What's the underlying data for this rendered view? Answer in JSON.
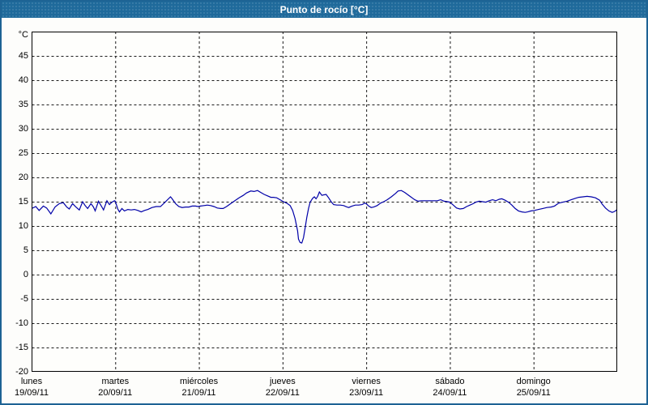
{
  "window": {
    "title": "Punto de rocío [°C]"
  },
  "colors": {
    "titlebar_bg": "#1f6a9b",
    "frame": "#1d6394",
    "background": "#fdfdfb",
    "plot_background": "#fefefc",
    "line": "#0000a8",
    "grid": "#1a1a1a",
    "text": "#000000"
  },
  "chart_data": {
    "type": "line",
    "title": "Punto de rocío [°C]",
    "ylabel": "°C",
    "xlabel": "",
    "ylim": [
      -20,
      50
    ],
    "ytick_step": 5,
    "ytick_labels": [
      "45",
      "40",
      "35",
      "30",
      "25",
      "20",
      "15",
      "10",
      "5",
      "0",
      "-5",
      "-10",
      "-15",
      "-20"
    ],
    "grid": "dashed",
    "legend_position": "none",
    "x_days": 7,
    "x_labels": [
      {
        "weekday": "lunes",
        "date": "19/09/11"
      },
      {
        "weekday": "martes",
        "date": "20/09/11"
      },
      {
        "weekday": "miércoles",
        "date": "21/09/11"
      },
      {
        "weekday": "jueves",
        "date": "22/09/11"
      },
      {
        "weekday": "viernes",
        "date": "23/09/11"
      },
      {
        "weekday": "sábado",
        "date": "24/09/11"
      },
      {
        "weekday": "domingo",
        "date": "25/09/11"
      }
    ],
    "series": [
      {
        "name": "Punto de rocío",
        "color": "#0000a8",
        "points": [
          [
            0.0,
            13.6
          ],
          [
            0.05,
            14.0
          ],
          [
            0.09,
            13.2
          ],
          [
            0.14,
            14.1
          ],
          [
            0.18,
            13.7
          ],
          [
            0.23,
            12.5
          ],
          [
            0.28,
            13.9
          ],
          [
            0.33,
            14.6
          ],
          [
            0.38,
            14.8
          ],
          [
            0.42,
            13.9
          ],
          [
            0.45,
            13.5
          ],
          [
            0.49,
            14.6
          ],
          [
            0.53,
            13.9
          ],
          [
            0.57,
            13.3
          ],
          [
            0.61,
            15.0
          ],
          [
            0.64,
            14.2
          ],
          [
            0.67,
            13.6
          ],
          [
            0.71,
            14.6
          ],
          [
            0.74,
            13.9
          ],
          [
            0.76,
            13.1
          ],
          [
            0.8,
            15.1
          ],
          [
            0.84,
            13.9
          ],
          [
            0.86,
            13.3
          ],
          [
            0.9,
            15.2
          ],
          [
            0.93,
            14.4
          ],
          [
            0.96,
            14.9
          ],
          [
            0.99,
            15.2
          ],
          [
            1.0,
            15.1
          ],
          [
            1.03,
            13.5
          ],
          [
            1.05,
            12.9
          ],
          [
            1.08,
            13.6
          ],
          [
            1.11,
            13.1
          ],
          [
            1.15,
            13.4
          ],
          [
            1.19,
            13.3
          ],
          [
            1.23,
            13.4
          ],
          [
            1.27,
            13.2
          ],
          [
            1.31,
            12.9
          ],
          [
            1.35,
            13.2
          ],
          [
            1.39,
            13.4
          ],
          [
            1.44,
            13.8
          ],
          [
            1.49,
            14.0
          ],
          [
            1.54,
            14.0
          ],
          [
            1.59,
            14.8
          ],
          [
            1.63,
            15.5
          ],
          [
            1.66,
            16.0
          ],
          [
            1.68,
            15.6
          ],
          [
            1.72,
            14.6
          ],
          [
            1.76,
            14.0
          ],
          [
            1.8,
            13.8
          ],
          [
            1.84,
            13.9
          ],
          [
            1.88,
            13.9
          ],
          [
            1.92,
            14.1
          ],
          [
            1.96,
            14.1
          ],
          [
            1.99,
            14.0
          ],
          [
            2.02,
            14.1
          ],
          [
            2.06,
            14.2
          ],
          [
            2.1,
            14.3
          ],
          [
            2.14,
            14.2
          ],
          [
            2.18,
            14.0
          ],
          [
            2.22,
            13.7
          ],
          [
            2.26,
            13.6
          ],
          [
            2.29,
            13.6
          ],
          [
            2.33,
            14.0
          ],
          [
            2.38,
            14.6
          ],
          [
            2.43,
            15.2
          ],
          [
            2.48,
            15.8
          ],
          [
            2.53,
            16.3
          ],
          [
            2.57,
            16.8
          ],
          [
            2.62,
            17.2
          ],
          [
            2.66,
            17.1
          ],
          [
            2.7,
            17.3
          ],
          [
            2.74,
            16.9
          ],
          [
            2.78,
            16.5
          ],
          [
            2.82,
            16.2
          ],
          [
            2.86,
            15.9
          ],
          [
            2.89,
            15.9
          ],
          [
            2.93,
            15.8
          ],
          [
            2.97,
            15.4
          ],
          [
            3.01,
            15.0
          ],
          [
            3.05,
            14.7
          ],
          [
            3.09,
            14.2
          ],
          [
            3.12,
            13.2
          ],
          [
            3.15,
            11.5
          ],
          [
            3.18,
            9.0
          ],
          [
            3.19,
            7.3
          ],
          [
            3.21,
            6.6
          ],
          [
            3.23,
            6.5
          ],
          [
            3.25,
            7.6
          ],
          [
            3.27,
            9.6
          ],
          [
            3.29,
            11.8
          ],
          [
            3.31,
            13.6
          ],
          [
            3.33,
            14.9
          ],
          [
            3.36,
            15.7
          ],
          [
            3.38,
            16.0
          ],
          [
            3.4,
            15.6
          ],
          [
            3.42,
            16.1
          ],
          [
            3.44,
            17.0
          ],
          [
            3.47,
            16.3
          ],
          [
            3.49,
            16.4
          ],
          [
            3.52,
            16.5
          ],
          [
            3.55,
            15.8
          ],
          [
            3.58,
            15.0
          ],
          [
            3.61,
            14.4
          ],
          [
            3.65,
            14.3
          ],
          [
            3.69,
            14.3
          ],
          [
            3.73,
            14.2
          ],
          [
            3.77,
            13.9
          ],
          [
            3.79,
            13.8
          ],
          [
            3.83,
            14.1
          ],
          [
            3.87,
            14.3
          ],
          [
            3.91,
            14.3
          ],
          [
            3.95,
            14.4
          ],
          [
            3.98,
            14.7
          ],
          [
            4.0,
            14.6
          ],
          [
            4.03,
            14.1
          ],
          [
            4.06,
            13.8
          ],
          [
            4.09,
            13.9
          ],
          [
            4.13,
            14.2
          ],
          [
            4.17,
            14.7
          ],
          [
            4.21,
            15.0
          ],
          [
            4.25,
            15.4
          ],
          [
            4.3,
            16.0
          ],
          [
            4.35,
            16.7
          ],
          [
            4.38,
            17.2
          ],
          [
            4.42,
            17.3
          ],
          [
            4.46,
            16.9
          ],
          [
            4.5,
            16.4
          ],
          [
            4.54,
            15.9
          ],
          [
            4.58,
            15.4
          ],
          [
            4.62,
            15.1
          ],
          [
            4.66,
            15.2
          ],
          [
            4.69,
            15.2
          ],
          [
            4.73,
            15.2
          ],
          [
            4.77,
            15.2
          ],
          [
            4.81,
            15.2
          ],
          [
            4.85,
            15.2
          ],
          [
            4.89,
            15.4
          ],
          [
            4.93,
            15.1
          ],
          [
            4.97,
            15.0
          ],
          [
            5.0,
            14.9
          ],
          [
            5.04,
            14.3
          ],
          [
            5.08,
            13.7
          ],
          [
            5.12,
            13.5
          ],
          [
            5.16,
            13.6
          ],
          [
            5.2,
            14.0
          ],
          [
            5.24,
            14.3
          ],
          [
            5.28,
            14.6
          ],
          [
            5.31,
            14.9
          ],
          [
            5.35,
            15.1
          ],
          [
            5.39,
            15.0
          ],
          [
            5.43,
            14.9
          ],
          [
            5.47,
            15.2
          ],
          [
            5.51,
            15.4
          ],
          [
            5.55,
            15.2
          ],
          [
            5.59,
            15.5
          ],
          [
            5.62,
            15.6
          ],
          [
            5.66,
            15.3
          ],
          [
            5.7,
            14.9
          ],
          [
            5.74,
            14.3
          ],
          [
            5.78,
            13.6
          ],
          [
            5.82,
            13.1
          ],
          [
            5.86,
            12.9
          ],
          [
            5.9,
            12.8
          ],
          [
            5.93,
            12.9
          ],
          [
            5.97,
            13.1
          ],
          [
            6.01,
            13.2
          ],
          [
            6.06,
            13.4
          ],
          [
            6.11,
            13.6
          ],
          [
            6.16,
            13.8
          ],
          [
            6.21,
            13.9
          ],
          [
            6.25,
            14.1
          ],
          [
            6.3,
            14.7
          ],
          [
            6.35,
            14.9
          ],
          [
            6.4,
            15.1
          ],
          [
            6.45,
            15.4
          ],
          [
            6.5,
            15.7
          ],
          [
            6.54,
            15.9
          ],
          [
            6.59,
            16.0
          ],
          [
            6.64,
            16.1
          ],
          [
            6.69,
            16.0
          ],
          [
            6.74,
            15.8
          ],
          [
            6.79,
            15.3
          ],
          [
            6.82,
            14.5
          ],
          [
            6.86,
            13.7
          ],
          [
            6.9,
            13.1
          ],
          [
            6.94,
            12.8
          ],
          [
            6.97,
            13.0
          ],
          [
            7.0,
            13.4
          ]
        ]
      }
    ]
  }
}
